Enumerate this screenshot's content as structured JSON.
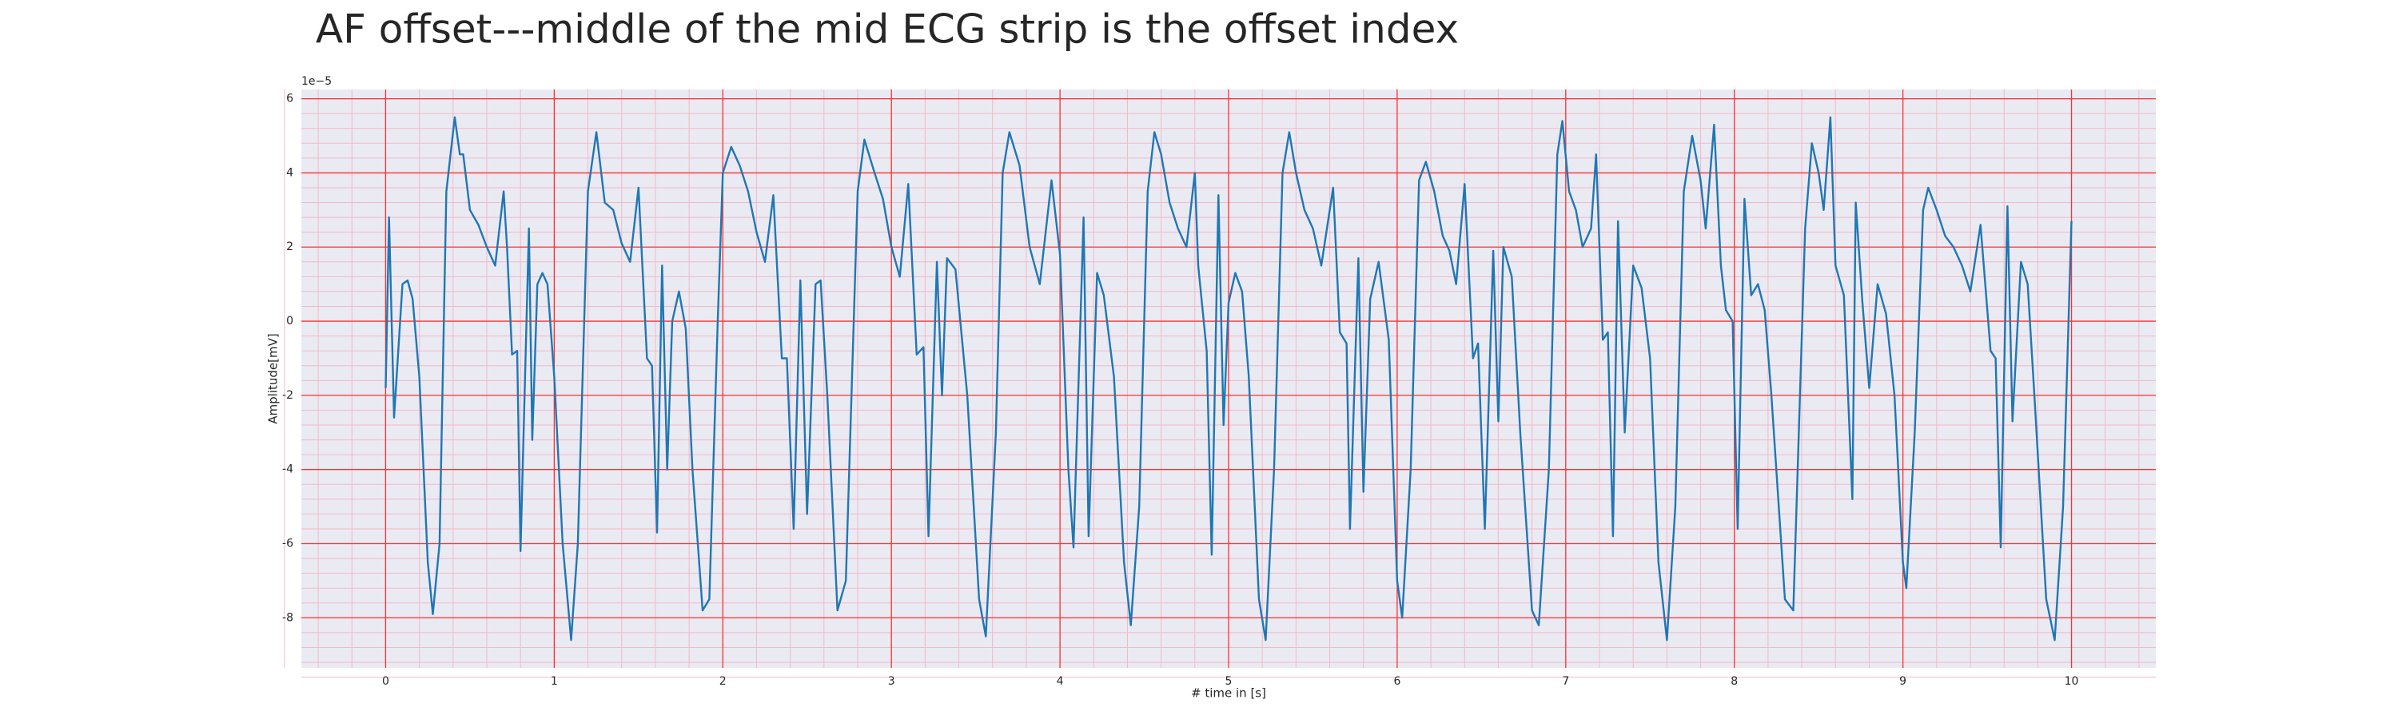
{
  "chart_data": {
    "type": "line",
    "title": "AF offset---middle of the mid ECG strip is the offset index",
    "x_label": "# time in [s]",
    "y_label": "Amplitude[mV]",
    "y_offset_label": "1e−5",
    "xlim": [
      -0.5,
      10.5
    ],
    "ylim": [
      -9.35,
      6.25
    ],
    "xticks": [
      0,
      1,
      2,
      3,
      4,
      5,
      6,
      7,
      8,
      9,
      10
    ],
    "yticks": [
      -8,
      -6,
      -4,
      -2,
      0,
      2,
      4,
      6
    ],
    "grid": true,
    "grid_color": "#ff3030",
    "minor_grid": true,
    "minor_grid_color": "#f4b8c8",
    "background": "#eaeaf2",
    "x": [
      0,
      0.02,
      0.05,
      0.1,
      0.13,
      0.16,
      0.2,
      0.25,
      0.28,
      0.32,
      0.36,
      0.41,
      0.44,
      0.46,
      0.5,
      0.55,
      0.6,
      0.65,
      0.7,
      0.72,
      0.75,
      0.78,
      0.8,
      0.85,
      0.87,
      0.9,
      0.93,
      0.96,
      1.0,
      1.05,
      1.1,
      1.14,
      1.2,
      1.25,
      1.3,
      1.35,
      1.4,
      1.45,
      1.5,
      1.55,
      1.58,
      1.61,
      1.64,
      1.67,
      1.7,
      1.74,
      1.78,
      1.82,
      1.88,
      1.92,
      1.97,
      2.0,
      2.05,
      2.1,
      2.15,
      2.2,
      2.25,
      2.3,
      2.35,
      2.38,
      2.42,
      2.46,
      2.5,
      2.55,
      2.58,
      2.62,
      2.68,
      2.73,
      2.8,
      2.84,
      2.9,
      2.95,
      3.0,
      3.05,
      3.1,
      3.15,
      3.19,
      3.22,
      3.27,
      3.3,
      3.33,
      3.38,
      3.45,
      3.52,
      3.56,
      3.62,
      3.66,
      3.7,
      3.76,
      3.82,
      3.88,
      3.95,
      4.0,
      4.05,
      4.08,
      4.14,
      4.17,
      4.22,
      4.26,
      4.32,
      4.38,
      4.42,
      4.47,
      4.52,
      4.56,
      4.6,
      4.65,
      4.7,
      4.75,
      4.8,
      4.82,
      4.87,
      4.9,
      4.94,
      4.97,
      5.0,
      5.04,
      5.08,
      5.12,
      5.18,
      5.22,
      5.27,
      5.32,
      5.36,
      5.4,
      5.45,
      5.5,
      5.55,
      5.62,
      5.66,
      5.7,
      5.72,
      5.77,
      5.8,
      5.84,
      5.89,
      5.95,
      6.0,
      6.03,
      6.08,
      6.13,
      6.17,
      6.22,
      6.27,
      6.31,
      6.35,
      6.4,
      6.45,
      6.48,
      6.52,
      6.57,
      6.6,
      6.63,
      6.68,
      6.73,
      6.8,
      6.84,
      6.9,
      6.95,
      6.98,
      7.02,
      7.06,
      7.1,
      7.15,
      7.18,
      7.22,
      7.25,
      7.28,
      7.31,
      7.35,
      7.4,
      7.45,
      7.5,
      7.55,
      7.6,
      7.65,
      7.7,
      7.75,
      7.8,
      7.83,
      7.88,
      7.92,
      7.95,
      7.99,
      8.02,
      8.06,
      8.1,
      8.14,
      8.18,
      8.22,
      8.3,
      8.35,
      8.42,
      8.46,
      8.5,
      8.53,
      8.57,
      8.6,
      8.65,
      8.7,
      8.72,
      8.76,
      8.8,
      8.85,
      8.9,
      8.95,
      9.0,
      9.02,
      9.07,
      9.12,
      9.15,
      9.2,
      9.25,
      9.3,
      9.35,
      9.4,
      9.46,
      9.52,
      9.55,
      9.58,
      9.62,
      9.65,
      9.7,
      9.74,
      9.78,
      9.85,
      9.9,
      9.95,
      10.0
    ],
    "series": [
      {
        "color": "#1f77b4",
        "values": [
          -1.8,
          2.8,
          -2.6,
          1.0,
          1.1,
          0.6,
          -1.5,
          -6.5,
          -7.9,
          -6,
          3.5,
          5.5,
          4.5,
          4.5,
          3.0,
          2.6,
          2.0,
          1.5,
          3.5,
          2.0,
          -0.9,
          -0.8,
          -6.2,
          2.5,
          -3.2,
          1.0,
          1.3,
          1.0,
          -1.5,
          -6,
          -8.6,
          -6,
          3.5,
          5.1,
          3.2,
          3.0,
          2.1,
          1.6,
          3.6,
          -1.0,
          -1.2,
          -5.7,
          1.5,
          -4.0,
          0.0,
          0.8,
          -0.2,
          -4,
          -7.8,
          -7.5,
          0,
          4.0,
          4.7,
          4.2,
          3.5,
          2.4,
          1.6,
          3.4,
          -1.0,
          -1.0,
          -5.6,
          1.1,
          -5.2,
          1.0,
          1.1,
          -2,
          -7.8,
          -7,
          3.5,
          4.9,
          4.0,
          3.3,
          2.0,
          1.2,
          3.7,
          -0.9,
          -0.7,
          -5.8,
          1.6,
          -2.0,
          1.7,
          1.4,
          -2,
          -7.5,
          -8.5,
          -3,
          4.0,
          5.1,
          4.2,
          2.0,
          1.0,
          3.8,
          1.8,
          -4.0,
          -6.1,
          2.8,
          -5.8,
          1.3,
          0.7,
          -1.5,
          -6.5,
          -8.2,
          -5,
          3.5,
          5.1,
          4.5,
          3.2,
          2.5,
          2.0,
          4.0,
          1.5,
          -0.8,
          -6.3,
          3.4,
          -2.8,
          0.5,
          1.3,
          0.8,
          -1.5,
          -7.5,
          -8.6,
          -4,
          4.0,
          5.1,
          4.0,
          3.0,
          2.5,
          1.5,
          3.6,
          -0.3,
          -0.6,
          -5.6,
          1.7,
          -4.6,
          0.6,
          1.6,
          -0.5,
          -7,
          -8.0,
          -4,
          3.8,
          4.3,
          3.5,
          2.3,
          1.9,
          1.0,
          3.7,
          -1.0,
          -0.6,
          -5.6,
          1.9,
          -2.7,
          2.0,
          1.2,
          -3,
          -7.8,
          -8.2,
          -4,
          4.5,
          5.4,
          3.5,
          3.0,
          2.0,
          2.5,
          4.5,
          -0.5,
          -0.3,
          -5.8,
          2.7,
          -3,
          1.5,
          0.9,
          -1,
          -6.5,
          -8.6,
          -5,
          3.5,
          5.0,
          3.8,
          2.5,
          5.3,
          1.5,
          0.3,
          0.0,
          -5.6,
          3.3,
          0.7,
          1.0,
          0.3,
          -2,
          -7.5,
          -7.8,
          2.5,
          4.8,
          4.0,
          3.0,
          5.5,
          1.5,
          0.7,
          -4.8,
          3.2,
          0.5,
          -1.8,
          1.0,
          0.2,
          -2,
          -6.5,
          -7.2,
          -3,
          3.0,
          3.6,
          3.0,
          2.3,
          2.0,
          1.5,
          0.8,
          2.6,
          -0.8,
          -1.0,
          -6.1,
          3.1,
          -2.7,
          1.6,
          1.0,
          -2,
          -7.5,
          -8.6,
          -5,
          2.7
        ]
      }
    ]
  }
}
